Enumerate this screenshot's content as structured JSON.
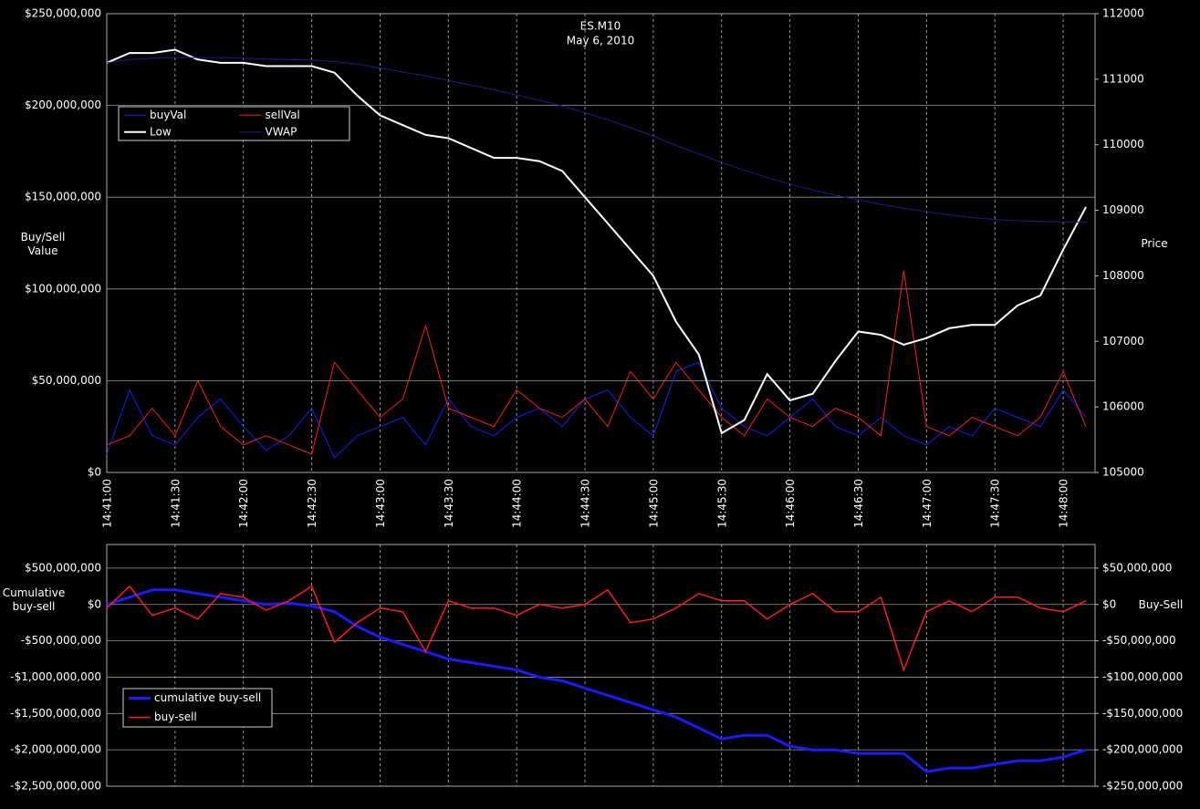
{
  "chart_data": [
    {
      "type": "line",
      "title": "ES.M10",
      "subtitle": "May 6, 2010",
      "ylabel": "Buy/Sell Value",
      "y2label": "Price",
      "x": [
        "14:41:00",
        "14:41:10",
        "14:41:20",
        "14:41:30",
        "14:41:40",
        "14:41:50",
        "14:42:00",
        "14:42:10",
        "14:42:20",
        "14:42:30",
        "14:42:40",
        "14:42:50",
        "14:43:00",
        "14:43:10",
        "14:43:20",
        "14:43:30",
        "14:43:40",
        "14:43:50",
        "14:44:00",
        "14:44:10",
        "14:44:20",
        "14:44:30",
        "14:44:40",
        "14:44:50",
        "14:45:00",
        "14:45:10",
        "14:45:20",
        "14:45:30",
        "14:45:40",
        "14:45:50",
        "14:46:00",
        "14:46:10",
        "14:46:20",
        "14:46:30",
        "14:46:40",
        "14:46:50",
        "14:47:00",
        "14:47:10",
        "14:47:20",
        "14:47:30",
        "14:47:40",
        "14:47:50",
        "14:48:00",
        "14:48:10"
      ],
      "xlim": [
        "14:41:00",
        "14:48:14"
      ],
      "xticks": [
        "14:41:00",
        "14:41:30",
        "14:42:00",
        "14:42:30",
        "14:43:00",
        "14:43:30",
        "14:44:00",
        "14:44:30",
        "14:45:00",
        "14:45:30",
        "14:46:00",
        "14:46:30",
        "14:47:00",
        "14:47:30",
        "14:48:00"
      ],
      "ylim": [
        0,
        250000000
      ],
      "yticks": [
        {
          "value": 0,
          "label": "$0"
        },
        {
          "value": 50000000,
          "label": "$50,000,000"
        },
        {
          "value": 100000000,
          "label": "$100,000,000"
        },
        {
          "value": 150000000,
          "label": "$150,000,000"
        },
        {
          "value": 200000000,
          "label": "$200,000,000"
        },
        {
          "value": 250000000,
          "label": "$250,000,000"
        }
      ],
      "y2lim": [
        105000,
        112000
      ],
      "y2ticks": [
        105000,
        106000,
        107000,
        108000,
        109000,
        110000,
        111000,
        112000
      ],
      "grid": true,
      "legend": "upper left",
      "series": [
        {
          "name": "buyVal",
          "color": "#1a1aff",
          "line_width": 1,
          "values": [
            10000000,
            45000000,
            20000000,
            15000000,
            30000000,
            40000000,
            25000000,
            12000000,
            20000000,
            35000000,
            8000000,
            20000000,
            25000000,
            30000000,
            15000000,
            40000000,
            25000000,
            20000000,
            30000000,
            35000000,
            25000000,
            40000000,
            45000000,
            30000000,
            20000000,
            55000000,
            60000000,
            35000000,
            25000000,
            20000000,
            30000000,
            40000000,
            25000000,
            20000000,
            30000000,
            20000000,
            15000000,
            25000000,
            20000000,
            35000000,
            30000000,
            25000000,
            45000000,
            30000000
          ]
        },
        {
          "name": "sellVal",
          "color": "#ff1a1a",
          "line_width": 1,
          "values": [
            15000000,
            20000000,
            35000000,
            20000000,
            50000000,
            25000000,
            15000000,
            20000000,
            15000000,
            10000000,
            60000000,
            45000000,
            30000000,
            40000000,
            80000000,
            35000000,
            30000000,
            25000000,
            45000000,
            35000000,
            30000000,
            40000000,
            25000000,
            55000000,
            40000000,
            60000000,
            45000000,
            30000000,
            20000000,
            40000000,
            30000000,
            25000000,
            35000000,
            30000000,
            20000000,
            110000000,
            25000000,
            20000000,
            30000000,
            25000000,
            20000000,
            30000000,
            55000000,
            25000000
          ]
        },
        {
          "name": "Low",
          "color": "#ffffff",
          "line_width": 2,
          "axis": "y2",
          "values": [
            111250,
            111400,
            111400,
            111450,
            111300,
            111250,
            111250,
            111200,
            111200,
            111200,
            111100,
            110750,
            110450,
            110300,
            110150,
            110100,
            109950,
            109800,
            109800,
            109750,
            109600,
            109200,
            108800,
            108400,
            108000,
            107300,
            106800,
            105600,
            105800,
            106500,
            106100,
            106200,
            106700,
            107150,
            107100,
            106950,
            107050,
            107200,
            107250,
            107250,
            107550,
            107700,
            108400,
            109050
          ]
        },
        {
          "name": "VWAP",
          "color": "#1a1a99",
          "line_width": 1,
          "axis": "y2",
          "values": [
            111250,
            111300,
            111320,
            111330,
            111330,
            111330,
            111320,
            111310,
            111300,
            111290,
            111270,
            111230,
            111170,
            111110,
            111050,
            110980,
            110910,
            110840,
            110760,
            110680,
            110590,
            110490,
            110380,
            110260,
            110130,
            109990,
            109860,
            109730,
            109610,
            109500,
            109400,
            109310,
            109230,
            109160,
            109090,
            109030,
            108980,
            108930,
            108890,
            108860,
            108840,
            108830,
            108820,
            108820
          ]
        }
      ]
    },
    {
      "type": "line",
      "ylabel": "Cumulative buy-sell",
      "y2label": "Buy-Sell",
      "x": [
        "14:41:00",
        "14:41:10",
        "14:41:20",
        "14:41:30",
        "14:41:40",
        "14:41:50",
        "14:42:00",
        "14:42:10",
        "14:42:20",
        "14:42:30",
        "14:42:40",
        "14:42:50",
        "14:43:00",
        "14:43:10",
        "14:43:20",
        "14:43:30",
        "14:43:40",
        "14:43:50",
        "14:44:00",
        "14:44:10",
        "14:44:20",
        "14:44:30",
        "14:44:40",
        "14:44:50",
        "14:45:00",
        "14:45:10",
        "14:45:20",
        "14:45:30",
        "14:45:40",
        "14:45:50",
        "14:46:00",
        "14:46:10",
        "14:46:20",
        "14:46:30",
        "14:46:40",
        "14:46:50",
        "14:47:00",
        "14:47:10",
        "14:47:20",
        "14:47:30",
        "14:47:40",
        "14:47:50",
        "14:48:00",
        "14:48:10"
      ],
      "xlim": [
        "14:41:00",
        "14:48:14"
      ],
      "ylim": [
        -2500000000,
        825000000
      ],
      "yticks": [
        {
          "value": 500000000,
          "label": "$500,000,000"
        },
        {
          "value": 0,
          "label": "$0"
        },
        {
          "value": -500000000,
          "label": "-$500,000,000"
        },
        {
          "value": -1000000000,
          "label": "-$1,000,000,000"
        },
        {
          "value": -1500000000,
          "label": "-$1,500,000,000"
        },
        {
          "value": -2000000000,
          "label": "-$2,000,000,000"
        },
        {
          "value": -2500000000,
          "label": "-$2,500,000,000"
        }
      ],
      "y2lim": [
        -250000000,
        82500000
      ],
      "y2ticks": [
        {
          "value": 50000000,
          "label": "$50,000,000"
        },
        {
          "value": 0,
          "label": "$0"
        },
        {
          "value": -50000000,
          "label": "-$50,000,000"
        },
        {
          "value": -100000000,
          "label": "-$100,000,000"
        },
        {
          "value": -150000000,
          "label": "-$150,000,000"
        },
        {
          "value": -200000000,
          "label": "-$200,000,000"
        },
        {
          "value": -250000000,
          "label": "-$250,000,000"
        }
      ],
      "grid": true,
      "legend": "lower left",
      "series": [
        {
          "name": "cumulative buy-sell",
          "color": "#1a1aff",
          "line_width": 3,
          "values": [
            0,
            100000000,
            200000000,
            200000000,
            150000000,
            100000000,
            50000000,
            0,
            20000000,
            -20000000,
            -100000000,
            -300000000,
            -450000000,
            -550000000,
            -650000000,
            -750000000,
            -800000000,
            -850000000,
            -900000000,
            -1000000000,
            -1050000000,
            -1150000000,
            -1250000000,
            -1350000000,
            -1450000000,
            -1550000000,
            -1700000000,
            -1850000000,
            -1800000000,
            -1800000000,
            -1950000000,
            -2000000000,
            -2000000000,
            -2050000000,
            -2050000000,
            -2050000000,
            -2300000000,
            -2250000000,
            -2250000000,
            -2200000000,
            -2150000000,
            -2150000000,
            -2100000000,
            -2000000000
          ]
        },
        {
          "name": "buy-sell",
          "color": "#ff1a1a",
          "line_width": 1.5,
          "axis": "y2",
          "values": [
            -5000000,
            25000000,
            -15000000,
            -5000000,
            -20000000,
            15000000,
            10000000,
            -8000000,
            5000000,
            25000000,
            -52000000,
            -25000000,
            -5000000,
            -10000000,
            -65000000,
            5000000,
            -5000000,
            -5000000,
            -15000000,
            0,
            -5000000,
            0,
            20000000,
            -25000000,
            -20000000,
            -5000000,
            15000000,
            5000000,
            5000000,
            -20000000,
            0,
            15000000,
            -10000000,
            -10000000,
            10000000,
            -90000000,
            -10000000,
            5000000,
            -10000000,
            10000000,
            10000000,
            -5000000,
            -10000000,
            5000000
          ]
        }
      ]
    }
  ]
}
